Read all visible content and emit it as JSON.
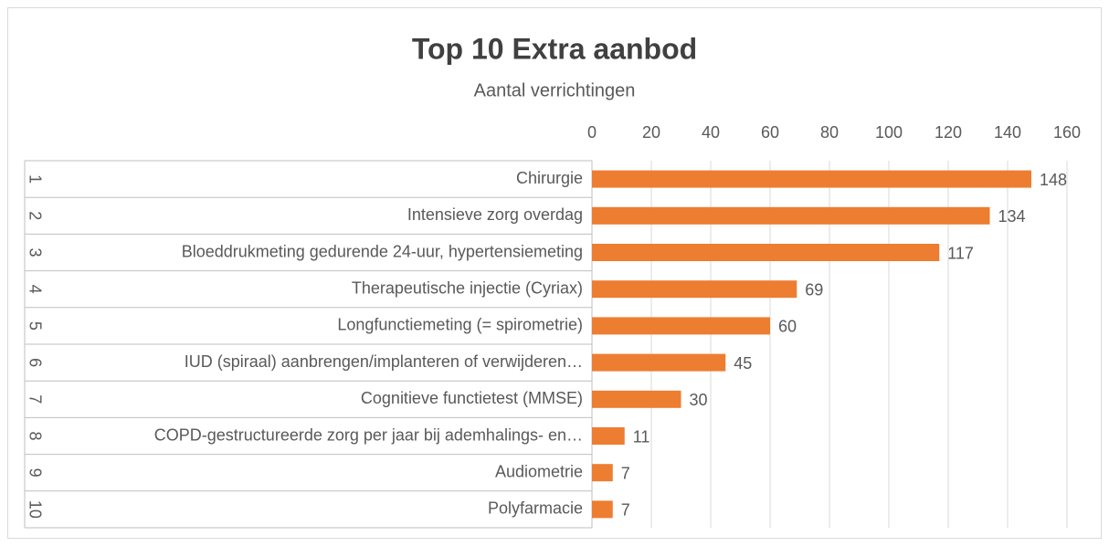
{
  "chart_data": {
    "type": "bar",
    "orientation": "horizontal",
    "title": "Top 10 Extra aanbod",
    "subtitle": "Aantal verrichtingen",
    "groups": [
      "1",
      "2",
      "3",
      "4",
      "5",
      "6",
      "7",
      "8",
      "9",
      "10"
    ],
    "categories": [
      "Chirurgie",
      "Intensieve zorg overdag",
      "Bloeddrukmeting gedurende 24-uur, hypertensiemeting",
      "Therapeutische injectie (Cyriax)",
      "Longfunctiemeting (= spirometrie)",
      "IUD (spiraal) aanbrengen/implanteren of verwijderen…",
      "Cognitieve functietest (MMSE)",
      "COPD-gestructureerde zorg per jaar bij ademhalings- en…",
      "Audiometrie",
      "Polyfarmacie"
    ],
    "values": [
      148,
      134,
      117,
      69,
      60,
      45,
      30,
      11,
      7,
      7
    ],
    "color": "#ed7d31",
    "xlim": [
      0,
      160
    ],
    "xticks": [
      0,
      20,
      40,
      60,
      80,
      100,
      120,
      140,
      160
    ],
    "grid": true
  }
}
